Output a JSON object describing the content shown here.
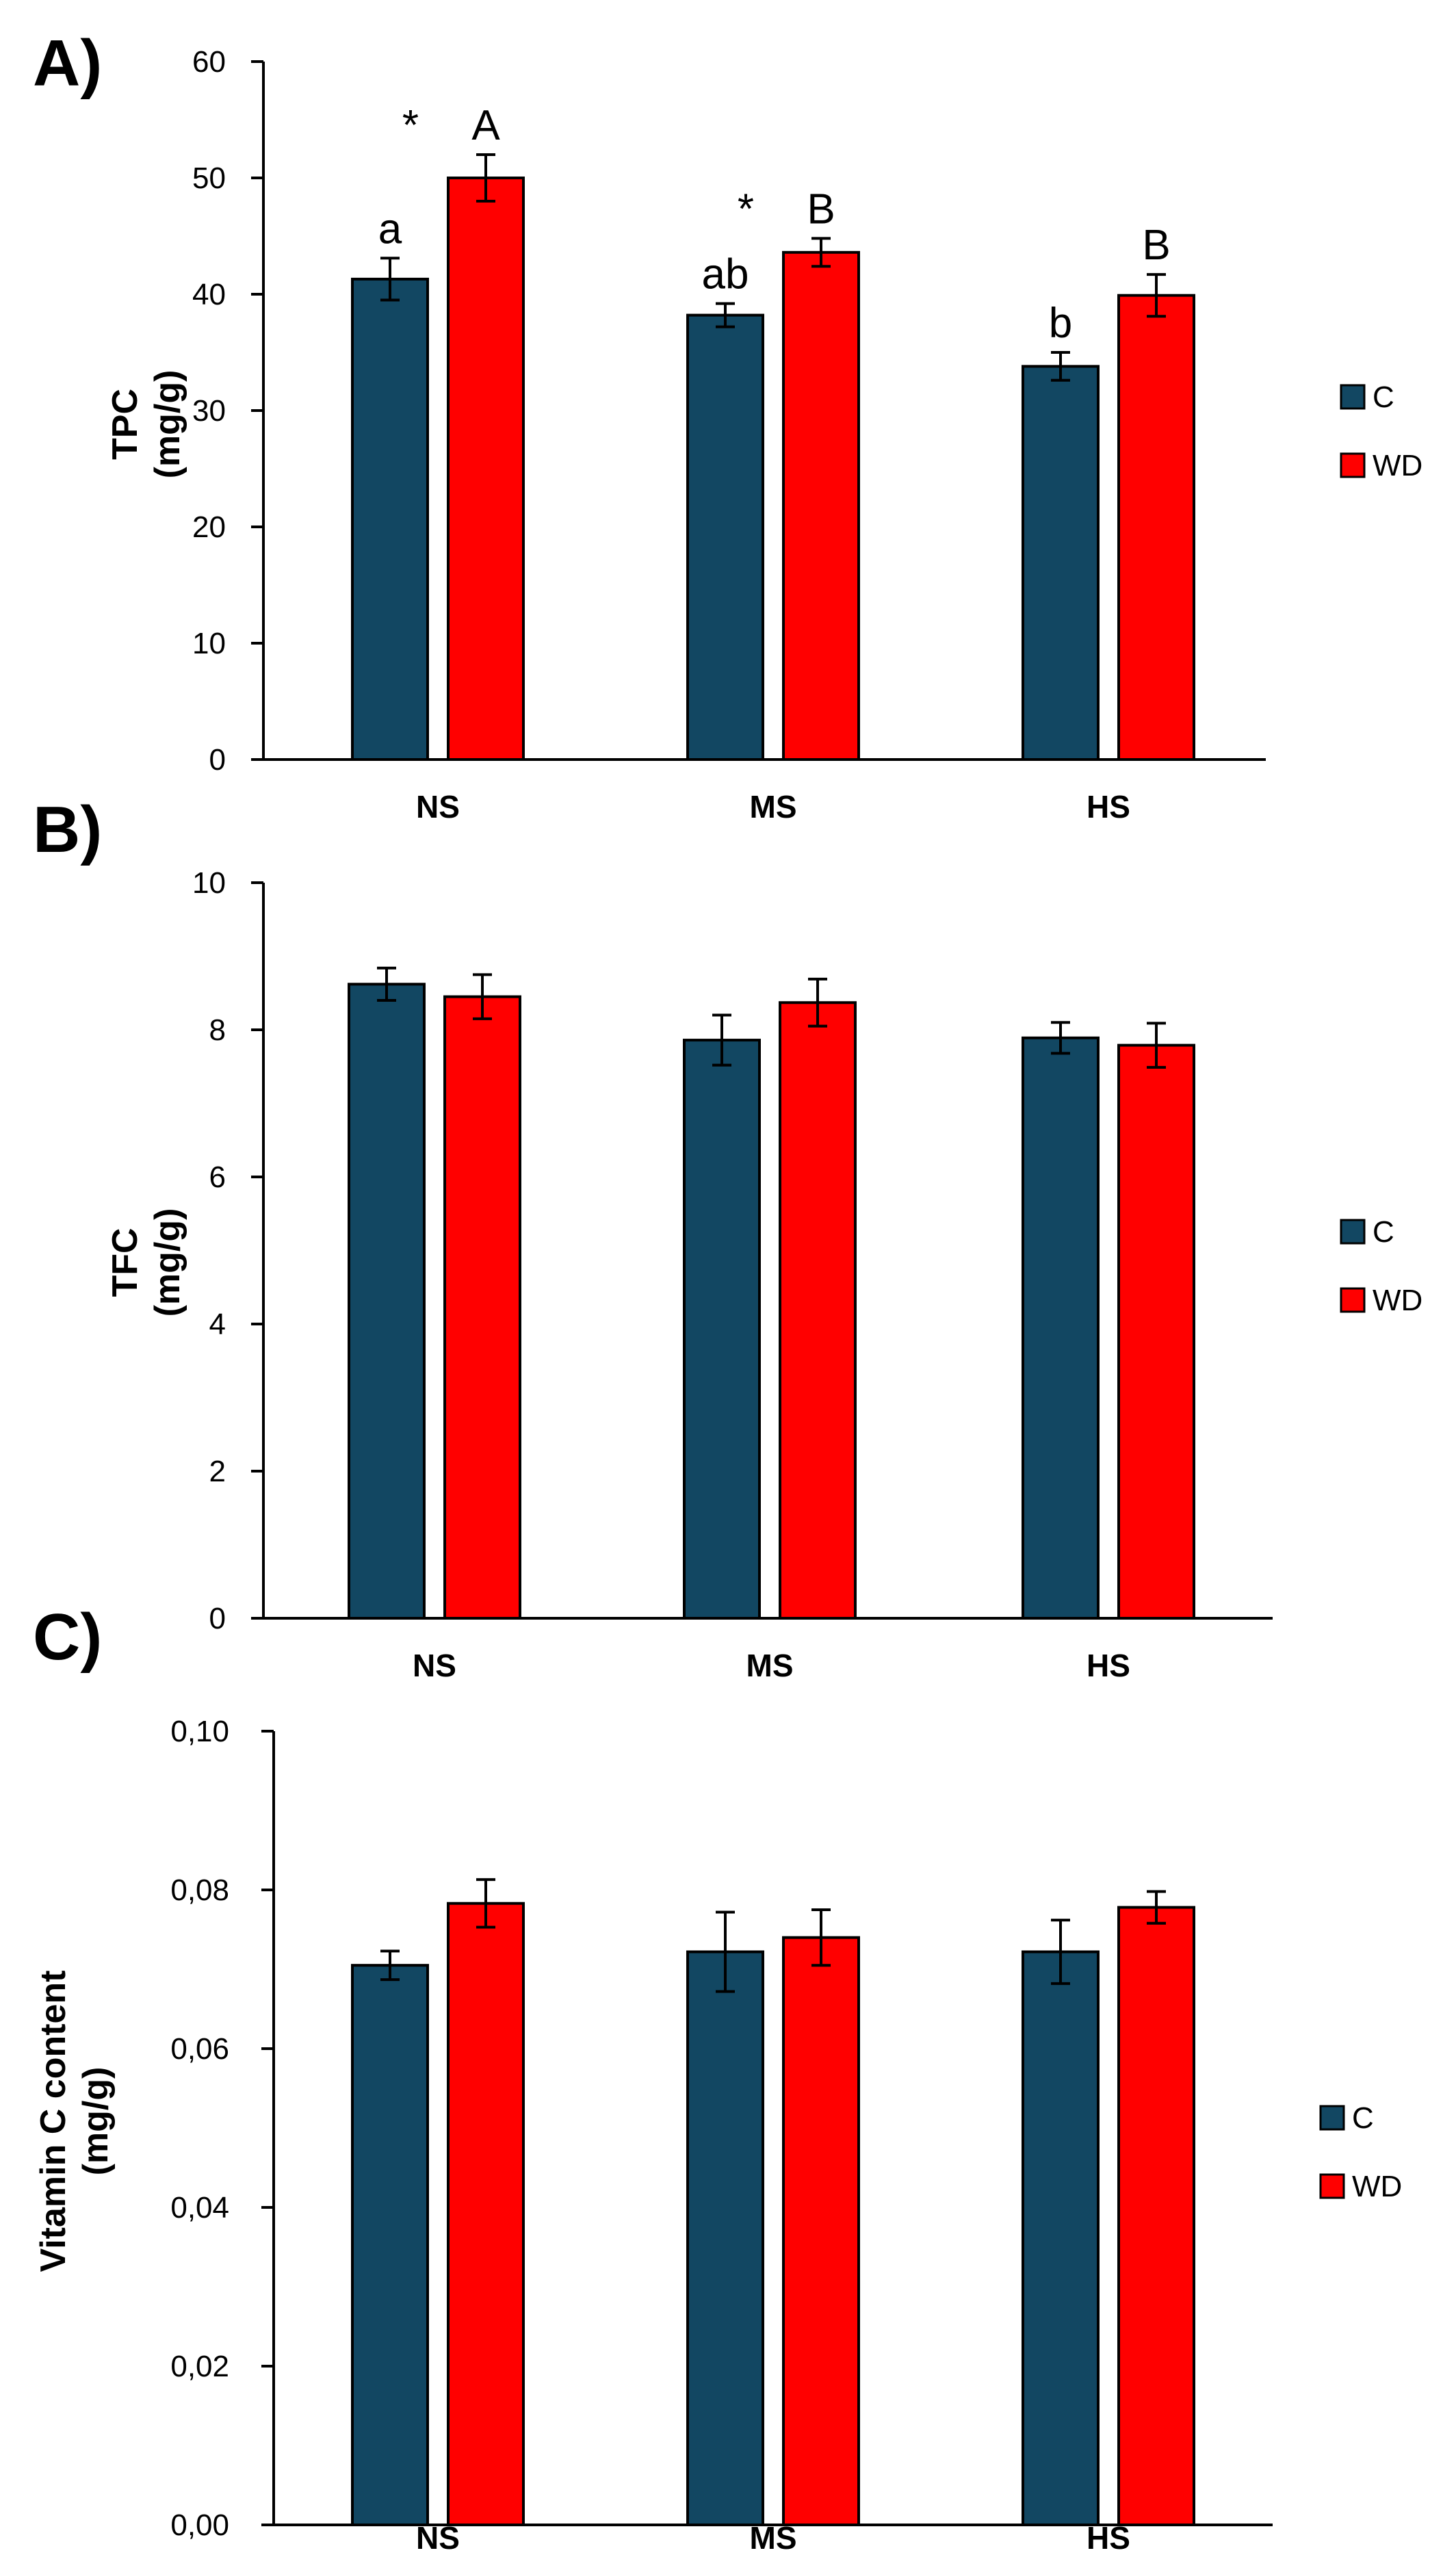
{
  "chart_data": [
    {
      "type": "bar",
      "panel_label": "A)",
      "categories": [
        "NS",
        "MS",
        "HS"
      ],
      "ylabel": [
        "TPC",
        "(mg/g)"
      ],
      "ylim": [
        0,
        60
      ],
      "ytick_values": [
        0,
        10,
        20,
        30,
        40,
        50,
        60
      ],
      "ytick_labels": [
        "0",
        "10",
        "20",
        "30",
        "40",
        "50",
        "60"
      ],
      "legend_position": "right",
      "series": [
        {
          "name": "C",
          "color": "#124762",
          "values": [
            41.3,
            38.2,
            33.8
          ],
          "errors": [
            1.8,
            1.0,
            1.2
          ],
          "labels": [
            "a",
            "ab",
            "b"
          ],
          "stars": [
            "",
            "",
            ""
          ]
        },
        {
          "name": "WD",
          "color": "#FF0000",
          "values": [
            50.0,
            43.6,
            39.9
          ],
          "errors": [
            2.0,
            1.2,
            1.8
          ],
          "labels": [
            "A",
            "B",
            "B"
          ],
          "stars": [
            "*",
            "*",
            ""
          ]
        }
      ]
    },
    {
      "type": "bar",
      "panel_label": "B)",
      "categories": [
        "NS",
        "MS",
        "HS"
      ],
      "ylabel": [
        "TFC",
        "(mg/g)"
      ],
      "ylim": [
        0,
        10
      ],
      "ytick_values": [
        0,
        2,
        4,
        6,
        8,
        10
      ],
      "ytick_labels": [
        "0",
        "2",
        "4",
        "6",
        "8",
        "10"
      ],
      "legend_position": "right",
      "series": [
        {
          "name": "C",
          "color": "#124762",
          "values": [
            8.62,
            7.86,
            7.89
          ],
          "errors": [
            0.22,
            0.34,
            0.21
          ],
          "labels": [
            "",
            "",
            ""
          ],
          "stars": [
            "",
            "",
            ""
          ]
        },
        {
          "name": "WD",
          "color": "#FF0000",
          "values": [
            8.45,
            8.37,
            7.79
          ],
          "errors": [
            0.3,
            0.32,
            0.3
          ],
          "labels": [
            "",
            "",
            ""
          ],
          "stars": [
            "",
            "",
            ""
          ]
        }
      ]
    },
    {
      "type": "bar",
      "panel_label": "C)",
      "categories": [
        "NS",
        "MS",
        "HS"
      ],
      "ylabel": [
        "Vitamin C content",
        "(mg/g)"
      ],
      "ylim": [
        0,
        0.1
      ],
      "ytick_values": [
        0,
        0.02,
        0.04,
        0.06,
        0.08,
        0.1
      ],
      "ytick_labels": [
        "0,00",
        "0,02",
        "0,04",
        "0,06",
        "0,08",
        "0,10"
      ],
      "legend_position": "right",
      "series": [
        {
          "name": "C",
          "color": "#124762",
          "values": [
            0.0705,
            0.0722,
            0.0722
          ],
          "errors": [
            0.0018,
            0.005,
            0.004
          ],
          "labels": [
            "",
            "",
            ""
          ],
          "stars": [
            "",
            "",
            ""
          ]
        },
        {
          "name": "WD",
          "color": "#FF0000",
          "values": [
            0.0783,
            0.074,
            0.0778
          ],
          "errors": [
            0.003,
            0.0035,
            0.002
          ],
          "labels": [
            "",
            "",
            ""
          ],
          "stars": [
            "",
            "",
            ""
          ]
        }
      ]
    }
  ]
}
